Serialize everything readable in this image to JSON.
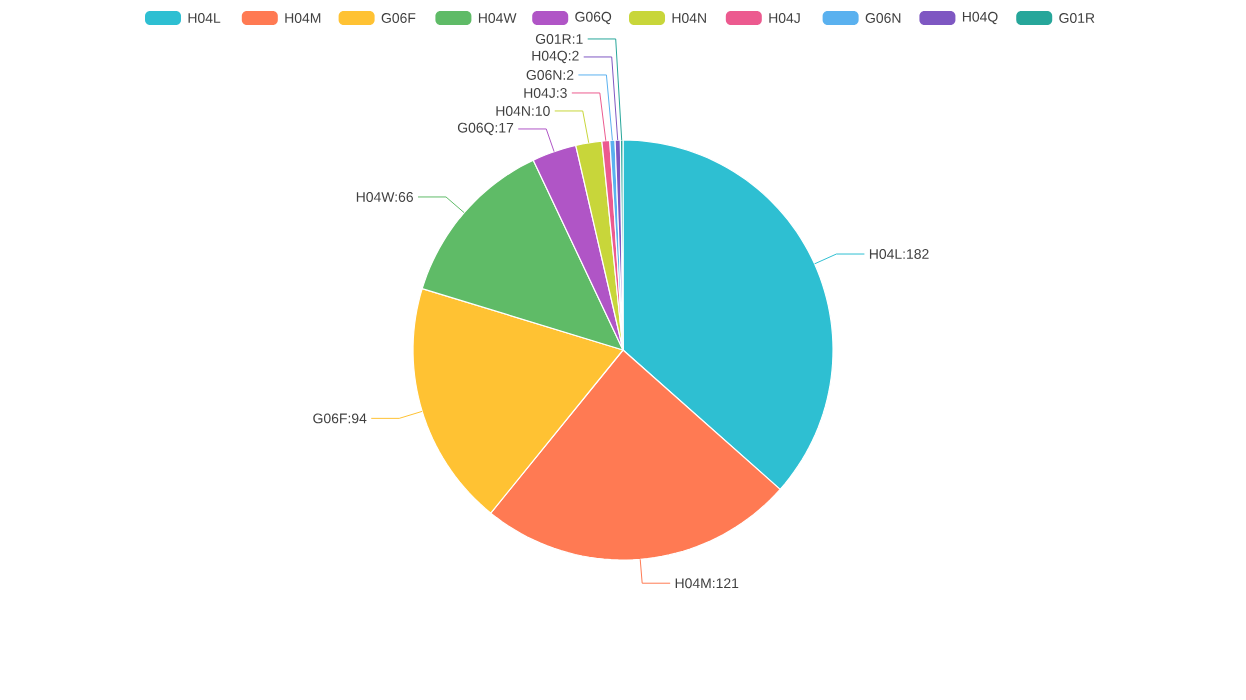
{
  "chart_data": {
    "type": "pie",
    "categories": [
      "H04L",
      "H04M",
      "G06F",
      "H04W",
      "G06Q",
      "H04N",
      "H04J",
      "G06N",
      "H04Q",
      "G01R"
    ],
    "values": [
      182,
      121,
      94,
      66,
      17,
      10,
      3,
      2,
      2,
      1
    ],
    "value_labels": [
      "H04L:182",
      "H04M:121",
      "G06F:94",
      "H04W:66",
      "G06Q:17",
      "H04N:10",
      "H04J:3",
      "G06N:2",
      "H04Q:2",
      "G01R:1"
    ],
    "colors": [
      "#2ebfd2",
      "#ff7a53",
      "#ffc233",
      "#5fbb67",
      "#b055c6",
      "#c8d63a",
      "#ec5a8f",
      "#5ab1ef",
      "#7e57c2",
      "#26a69a"
    ],
    "legend": "top"
  }
}
